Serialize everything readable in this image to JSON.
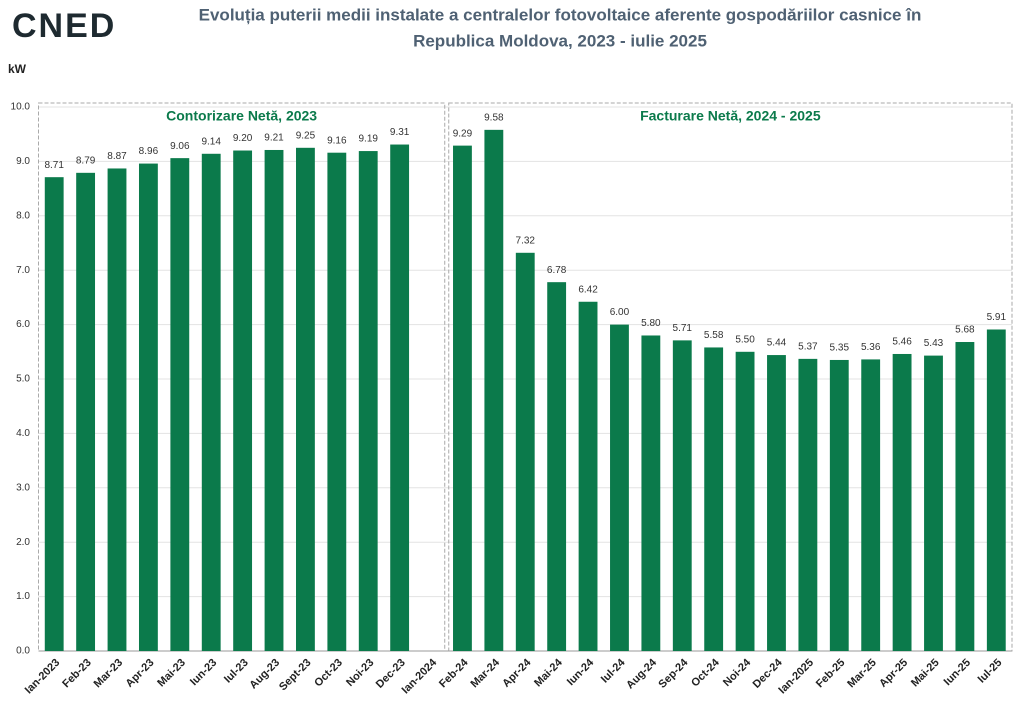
{
  "logo": "CNED",
  "chart_data": {
    "type": "bar",
    "title": "Evoluția puterii medii instalate a centralelor fotovoltaice aferente gospodăriilor casnice în",
    "title_line_2": "Republica Moldova, 2023 - iulie 2025",
    "y_label": "kW",
    "annotations": [
      "Contorizare Netă, 2023",
      "Facturare Netă, 2024 - 2025"
    ],
    "categories": [
      "Ian-2023",
      "Feb-23",
      "Mar-23",
      "Apr-23",
      "Mai-23",
      "Iun-23",
      "Iul-23",
      "Aug-23",
      "Sept-23",
      "Oct-23",
      "Noi-23",
      "Dec-23",
      "Ian-2024",
      "Feb-24",
      "Mar-24",
      "Apr-24",
      "Mai-24",
      "Iun-24",
      "Iul-24",
      "Aug-24",
      "Sep-24",
      "Oct-24",
      "Noi-24",
      "Dec-24",
      "Ian-2025",
      "Feb-25",
      "Mar-25",
      "Apr-25",
      "Mai-25",
      "Iun-25",
      "Iul-25"
    ],
    "values": [
      8.71,
      8.79,
      8.87,
      8.96,
      9.06,
      9.14,
      9.2,
      9.21,
      9.25,
      9.16,
      9.19,
      9.31,
      null,
      9.29,
      9.58,
      7.32,
      6.78,
      6.42,
      6.0,
      5.8,
      5.71,
      5.58,
      5.5,
      5.44,
      5.37,
      5.35,
      5.36,
      5.46,
      5.43,
      5.68,
      5.91
    ],
    "value_labels": [
      "8.71",
      "8.79",
      "8.87",
      "8.96",
      "9.06",
      "9.14",
      "9.20",
      "9.21",
      "9.25",
      "9.16",
      "9.19",
      "9.31",
      null,
      "9.29",
      "9.58",
      "7.32",
      "6.78",
      "6.42",
      "6.00",
      "5.80",
      "5.71",
      "5.58",
      "5.50",
      "5.44",
      "5.37",
      "5.35",
      "5.36",
      "5.46",
      "5.43",
      "5.68",
      "5.91"
    ],
    "color": "#0b7a4b",
    "ylim": [
      0,
      10
    ],
    "yticks": [
      {
        "value": 0,
        "label": "0.0"
      },
      {
        "value": 1,
        "label": "1.0"
      },
      {
        "value": 2,
        "label": "2.0"
      },
      {
        "value": 3,
        "label": "3.0"
      },
      {
        "value": 4,
        "label": "4.0"
      },
      {
        "value": 5,
        "label": "5.0"
      },
      {
        "value": 6,
        "label": "6.0"
      },
      {
        "value": 7,
        "label": "7.0"
      },
      {
        "value": 8,
        "label": "8.0"
      },
      {
        "value": 9,
        "label": "9.0"
      },
      {
        "value": 10,
        "label": "10.0"
      }
    ],
    "grid": true
  }
}
